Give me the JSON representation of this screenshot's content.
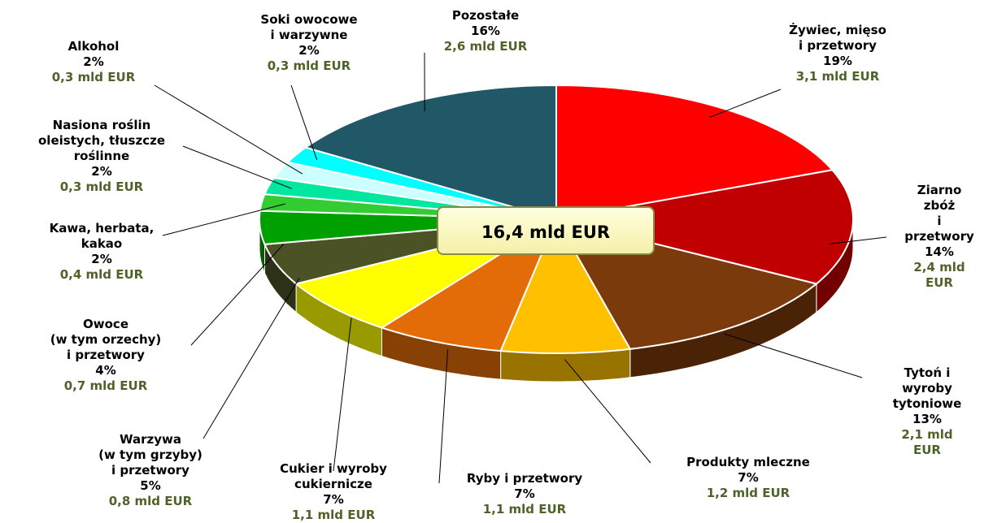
{
  "chart_data": {
    "type": "pie",
    "categories": [
      "Żywiec, mięso\ni przetwory",
      "Ziarno zbóż\ni przetwory",
      "Tytoń i wyroby\ntytoniowe",
      "Produkty mleczne",
      "Ryby i przetwory",
      "Cukier i wyroby\ncukiernicze",
      "Warzywa\n(w tym grzyby)\ni przetwory",
      "Owoce\n(w tym orzechy)\ni przetwory",
      "Kawa, herbata,\nkakao",
      "Nasiona roślin\noleistych, tłuszcze\nroślinne",
      "Alkohol",
      "Soki owocowe\ni warzywne",
      "Pozostałe"
    ],
    "values": [
      19,
      14,
      13,
      7,
      7,
      7,
      5,
      4,
      2,
      2,
      2,
      2,
      16
    ],
    "value_labels": [
      "19%",
      "14%",
      "13%",
      "7%",
      "7%",
      "7%",
      "5%",
      "4%",
      "2%",
      "2%",
      "2%",
      "2%",
      "16%"
    ],
    "amounts": [
      3.1,
      2.4,
      2.1,
      1.2,
      1.1,
      1.1,
      0.8,
      0.7,
      0.4,
      0.3,
      0.3,
      0.3,
      2.6
    ],
    "amount_labels": [
      "3,1 mld EUR",
      "2,4 mld EUR",
      "2,1 mld EUR",
      "1,2 mld EUR",
      "1,1 mld EUR",
      "1,1 mld EUR",
      "0,8 mld EUR",
      "0,7 mld EUR",
      "0,4 mld EUR",
      "0,3 mld EUR",
      "0,3 mld EUR",
      "0,3 mld EUR",
      "2,6 mld EUR"
    ],
    "colors": [
      "#ff0000",
      "#c00000",
      "#7b3a0c",
      "#ffc000",
      "#e36c09",
      "#ffff00",
      "#4a5226",
      "#00a000",
      "#33cc33",
      "#00e8a0",
      "#ccffff",
      "#00ffff",
      "#215868"
    ],
    "annotation": "16,4 mld EUR"
  }
}
